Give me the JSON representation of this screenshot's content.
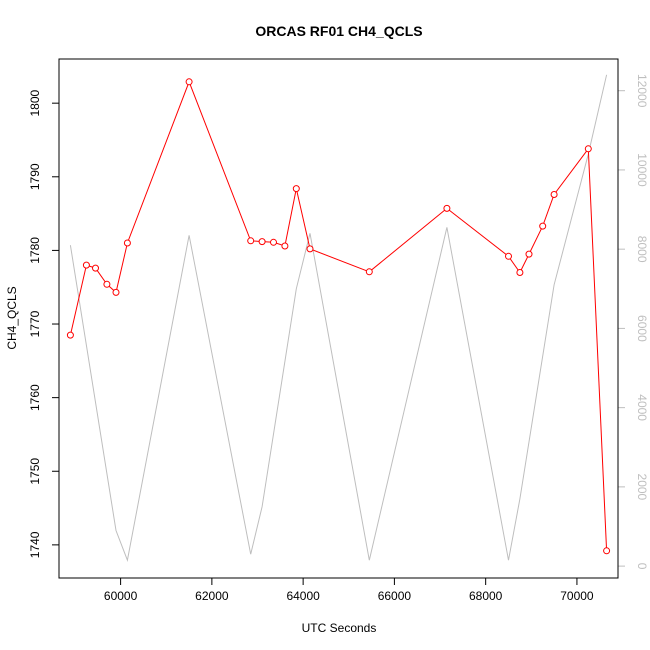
{
  "chart_data": {
    "type": "line",
    "title": "ORCAS RF01 CH4_QCLS",
    "xlabel": "UTC Seconds",
    "ylabel": "CH4_QCLS",
    "xlim": [
      58650,
      70900
    ],
    "ylim": [
      1735.5,
      1806
    ],
    "y2lim": [
      -300,
      12800
    ],
    "x_ticks": [
      60000,
      62000,
      64000,
      66000,
      68000,
      70000
    ],
    "y_ticks": [
      1740,
      1750,
      1760,
      1770,
      1780,
      1790,
      1800
    ],
    "y2_ticks": [
      0,
      2000,
      4000,
      6000,
      8000,
      10000,
      12000
    ],
    "grid": false,
    "colors": {
      "primary": "#ff0000",
      "secondary": "#bebebe",
      "axis": "#000000"
    },
    "series": [
      {
        "axis": "left",
        "style": "line+markers",
        "points": [
          [
            58900,
            1768.5
          ],
          [
            59250,
            1778.0
          ],
          [
            59450,
            1777.6
          ],
          [
            59700,
            1775.4
          ],
          [
            59900,
            1774.3
          ],
          [
            60150,
            1781.0
          ],
          [
            61500,
            1802.9
          ],
          [
            62850,
            1781.3
          ],
          [
            63100,
            1781.2
          ],
          [
            63350,
            1781.1
          ],
          [
            63600,
            1780.6
          ],
          [
            63850,
            1788.4
          ],
          [
            64150,
            1780.2
          ],
          [
            65450,
            1777.1
          ],
          [
            67150,
            1785.7
          ],
          [
            68500,
            1779.2
          ],
          [
            68750,
            1777.0
          ],
          [
            68950,
            1779.5
          ],
          [
            69250,
            1783.3
          ],
          [
            69500,
            1787.6
          ],
          [
            70250,
            1793.8
          ],
          [
            70650,
            1739.2
          ]
        ]
      },
      {
        "axis": "right",
        "style": "line",
        "points": [
          [
            58900,
            8100
          ],
          [
            59900,
            900
          ],
          [
            60150,
            150
          ],
          [
            61500,
            8350
          ],
          [
            62850,
            300
          ],
          [
            63100,
            1500
          ],
          [
            63850,
            7000
          ],
          [
            64150,
            8400
          ],
          [
            65450,
            150
          ],
          [
            67150,
            8550
          ],
          [
            68500,
            150
          ],
          [
            68750,
            1700
          ],
          [
            69500,
            7100
          ],
          [
            70250,
            10400
          ],
          [
            70650,
            12400
          ]
        ]
      }
    ]
  }
}
